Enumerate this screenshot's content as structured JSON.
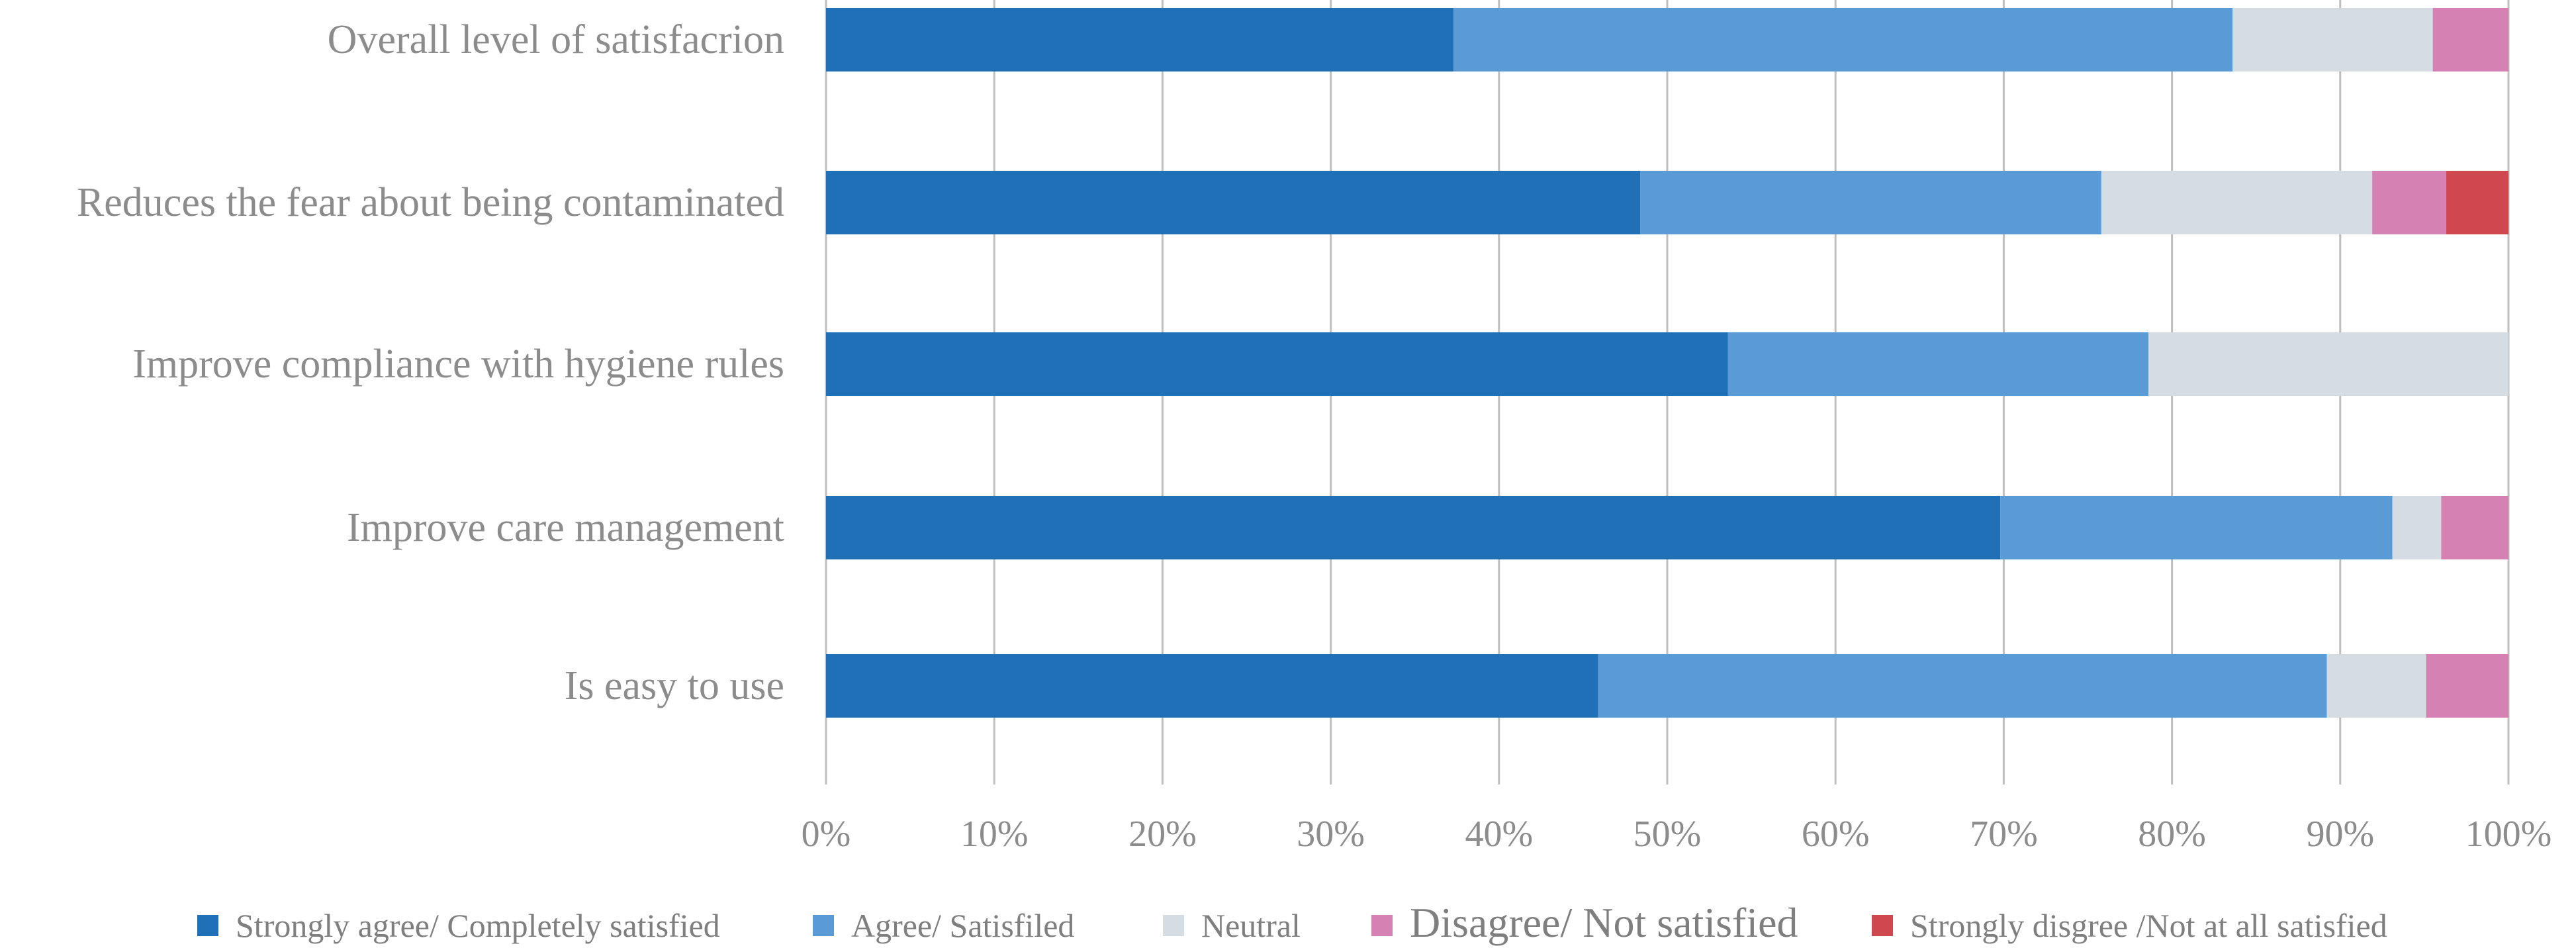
{
  "chart_data": {
    "type": "bar",
    "orientation": "horizontal",
    "stacked": "percent",
    "categories": [
      "Overall level of satisfacrion",
      "Reduces the fear about being contaminated",
      "Improve compliance with hygiene rules",
      "Improve care management",
      "Is easy to use"
    ],
    "series": [
      {
        "name": "Strongly agree/ Completely satisfied",
        "color": "#2070b8",
        "values": [
          37.3,
          48.4,
          53.6,
          69.8,
          45.9
        ]
      },
      {
        "name": "Agree/ Satisfiled",
        "color": "#5b9bd5",
        "values": [
          46.3,
          27.4,
          25.0,
          23.3,
          43.3
        ]
      },
      {
        "name": "Neutral",
        "color": "#d6dce4",
        "values": [
          11.9,
          16.1,
          21.4,
          2.9,
          5.9
        ]
      },
      {
        "name": "Disagree/ Not satisfied",
        "color": "#d681b4",
        "values": [
          4.5,
          4.4,
          0,
          4.0,
          4.9
        ]
      },
      {
        "name": "Strongly disgree /Not at all satisfied",
        "color": "#d0484f",
        "values": [
          0,
          3.7,
          0,
          0,
          0
        ]
      }
    ],
    "x_ticks": [
      "0%",
      "10%",
      "20%",
      "30%",
      "40%",
      "50%",
      "60%",
      "70%",
      "80%",
      "90%",
      "100%"
    ],
    "xlim": [
      0,
      100
    ],
    "grid": "vertical",
    "legend_position": "bottom"
  }
}
